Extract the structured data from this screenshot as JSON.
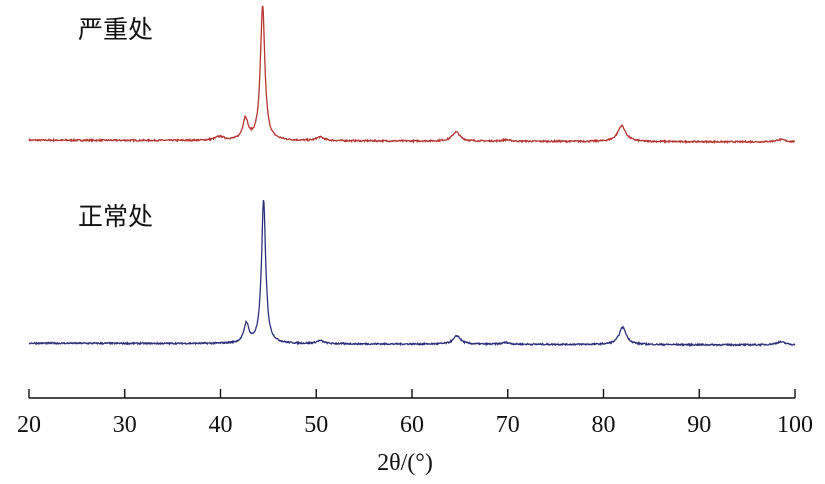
{
  "chart_data": {
    "type": "line",
    "title": "",
    "xlabel": "2θ/(°)",
    "ylabel": "",
    "xlim": [
      20,
      100
    ],
    "xticks": [
      20,
      30,
      40,
      50,
      60,
      70,
      80,
      90,
      100
    ],
    "y_axis_shown": false,
    "grid": false,
    "series": [
      {
        "name": "严重处",
        "color": "#b5342f",
        "baseline_start": 0.3,
        "baseline_end": 0.0,
        "noise": 0.25,
        "peaks": [
          {
            "x": 39.9,
            "height": 0.6,
            "width": 0.55
          },
          {
            "x": 42.6,
            "height": 3.5,
            "width": 0.32
          },
          {
            "x": 44.4,
            "height": 22.0,
            "width": 0.28
          },
          {
            "x": 50.4,
            "height": 0.6,
            "width": 0.45
          },
          {
            "x": 64.6,
            "height": 1.5,
            "width": 0.48
          },
          {
            "x": 69.8,
            "height": 0.25,
            "width": 0.45
          },
          {
            "x": 81.9,
            "height": 2.6,
            "width": 0.5
          },
          {
            "x": 98.5,
            "height": 0.4,
            "width": 0.6
          }
        ]
      },
      {
        "name": "正常处",
        "color": "#2e2f7a",
        "baseline_start": 0.3,
        "baseline_end": 0.0,
        "noise": 0.25,
        "peaks": [
          {
            "x": 42.7,
            "height": 3.2,
            "width": 0.3
          },
          {
            "x": 44.5,
            "height": 24.0,
            "width": 0.26
          },
          {
            "x": 50.4,
            "height": 0.5,
            "width": 0.45
          },
          {
            "x": 64.7,
            "height": 1.4,
            "width": 0.45
          },
          {
            "x": 69.8,
            "height": 0.3,
            "width": 0.45
          },
          {
            "x": 82.0,
            "height": 2.9,
            "width": 0.45
          },
          {
            "x": 98.5,
            "height": 0.5,
            "width": 0.6
          }
        ]
      }
    ]
  }
}
